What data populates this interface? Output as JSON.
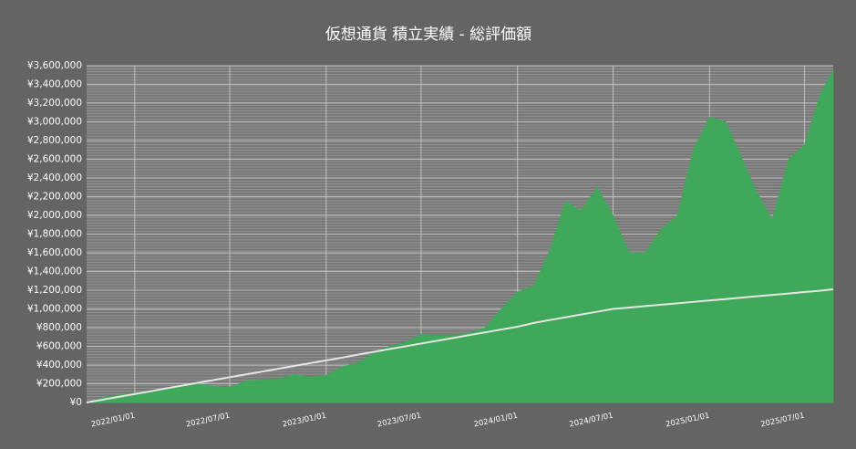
{
  "chart_data": {
    "type": "area",
    "title": "仮想通貨 積立実績 - 総評価額",
    "x": [
      "2021/10/01",
      "2021/11/01",
      "2021/12/01",
      "2022/01/01",
      "2022/02/01",
      "2022/03/01",
      "2022/04/01",
      "2022/05/01",
      "2022/06/01",
      "2022/07/01",
      "2022/08/01",
      "2022/09/01",
      "2022/10/01",
      "2022/11/01",
      "2022/12/01",
      "2023/01/01",
      "2023/02/01",
      "2023/03/01",
      "2023/04/01",
      "2023/05/01",
      "2023/06/01",
      "2023/07/01",
      "2023/08/01",
      "2023/09/01",
      "2023/10/01",
      "2023/11/01",
      "2023/12/01",
      "2024/01/01",
      "2024/02/01",
      "2024/03/01",
      "2024/04/01",
      "2024/05/01",
      "2024/06/01",
      "2024/07/01",
      "2024/08/01",
      "2024/09/01",
      "2024/10/01",
      "2024/11/01",
      "2024/12/01",
      "2025/01/01",
      "2025/02/01",
      "2025/03/01",
      "2025/04/01",
      "2025/05/01",
      "2025/06/01",
      "2025/07/01",
      "2025/08/01",
      "2025/08/25"
    ],
    "series": [
      {
        "type": "area",
        "color": "#3fa85a",
        "values": [
          0,
          50000,
          80000,
          100000,
          120000,
          150000,
          180000,
          200000,
          170000,
          160000,
          230000,
          240000,
          250000,
          300000,
          270000,
          290000,
          380000,
          420000,
          530000,
          600000,
          640000,
          730000,
          720000,
          720000,
          740000,
          800000,
          1000000,
          1180000,
          1250000,
          1600000,
          2150000,
          2050000,
          2300000,
          2000000,
          1600000,
          1600000,
          1850000,
          2000000,
          2700000,
          3050000,
          3000000,
          2650000,
          2250000,
          1950000,
          2600000,
          2750000,
          3300000,
          3550000
        ]
      },
      {
        "type": "line",
        "color": "#e6e6e6",
        "values": [
          0,
          30000,
          60000,
          90000,
          120000,
          150000,
          180000,
          210000,
          240000,
          270000,
          300000,
          330000,
          360000,
          390000,
          420000,
          450000,
          480000,
          510000,
          540000,
          570000,
          600000,
          630000,
          660000,
          690000,
          720000,
          750000,
          780000,
          810000,
          850000,
          880000,
          910000,
          940000,
          970000,
          1000000,
          1015000,
          1030000,
          1045000,
          1060000,
          1075000,
          1090000,
          1105000,
          1120000,
          1135000,
          1150000,
          1165000,
          1180000,
          1195000,
          1210000
        ]
      }
    ],
    "xlim": [
      "2021/10/01",
      "2025/08/25"
    ],
    "xticks": [
      "2022/01/01",
      "2022/07/01",
      "2023/01/01",
      "2023/07/01",
      "2024/01/01",
      "2024/07/01",
      "2025/01/01",
      "2025/07/01"
    ],
    "ylim": [
      0,
      3600000
    ],
    "yticks": [
      {
        "value": 0,
        "label": "¥0"
      },
      {
        "value": 200000,
        "label": "¥200,000"
      },
      {
        "value": 400000,
        "label": "¥400,000"
      },
      {
        "value": 600000,
        "label": "¥600,000"
      },
      {
        "value": 800000,
        "label": "¥800,000"
      },
      {
        "value": 1000000,
        "label": "¥1,000,000"
      },
      {
        "value": 1200000,
        "label": "¥1,200,000"
      },
      {
        "value": 1400000,
        "label": "¥1,400,000"
      },
      {
        "value": 1600000,
        "label": "¥1,600,000"
      },
      {
        "value": 1800000,
        "label": "¥1,800,000"
      },
      {
        "value": 2000000,
        "label": "¥2,000,000"
      },
      {
        "value": 2200000,
        "label": "¥2,200,000"
      },
      {
        "value": 2400000,
        "label": "¥2,400,000"
      },
      {
        "value": 2600000,
        "label": "¥2,600,000"
      },
      {
        "value": 2800000,
        "label": "¥2,800,000"
      },
      {
        "value": 3000000,
        "label": "¥3,000,000"
      },
      {
        "value": 3200000,
        "label": "¥3,200,000"
      },
      {
        "value": 3400000,
        "label": "¥3,400,000"
      },
      {
        "value": 3600000,
        "label": "¥3,600,000"
      }
    ],
    "grid": true
  }
}
